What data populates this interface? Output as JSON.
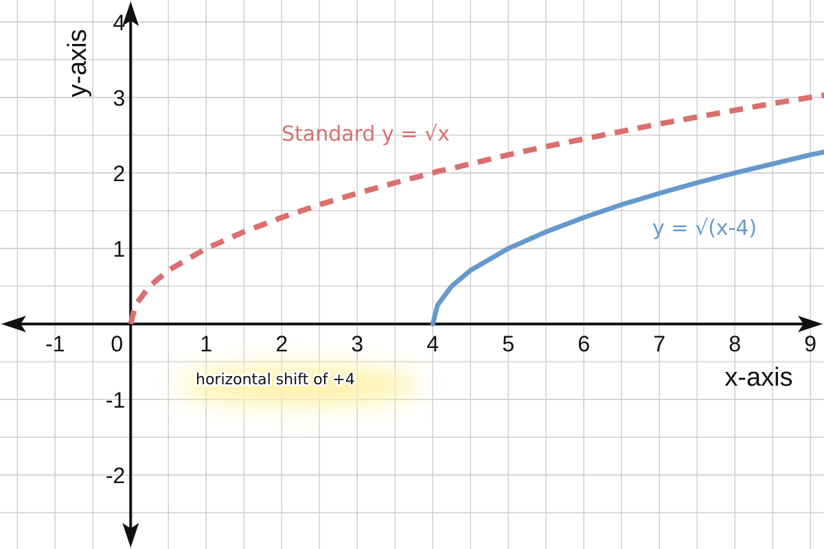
{
  "chart_data": {
    "type": "line",
    "x_label": "x-axis",
    "y_label": "y-axis",
    "annotation": "horizontal shift of +4",
    "x": [
      0,
      0.0625,
      0.25,
      0.5,
      1,
      1.5,
      2,
      2.5,
      3,
      3.5,
      4,
      4.0625,
      4.25,
      4.5,
      5,
      5.5,
      6,
      6.5,
      7,
      7.5,
      8,
      8.5,
      9,
      9.2
    ],
    "series": [
      {
        "name": "Standard y = √x",
        "color": "#d9706e",
        "style": "dashed",
        "values": [
          0,
          0.25,
          0.5,
          0.71,
          1,
          1.22,
          1.41,
          1.58,
          1.73,
          1.87,
          2,
          2.02,
          2.06,
          2.12,
          2.24,
          2.35,
          2.45,
          2.55,
          2.65,
          2.74,
          2.83,
          2.92,
          3,
          3.03
        ]
      },
      {
        "name": "y = √(x-4)",
        "color": "#6699cc",
        "style": "solid",
        "values": [
          null,
          null,
          null,
          null,
          null,
          null,
          null,
          null,
          null,
          null,
          0,
          0.25,
          0.5,
          0.71,
          1,
          1.22,
          1.41,
          1.58,
          1.73,
          1.87,
          2,
          2.12,
          2.24,
          2.28
        ]
      }
    ],
    "xlim": [
      -1.73,
      9.18
    ],
    "ylim": [
      -2.98,
      4.29
    ],
    "xticks": [
      -1,
      0,
      1,
      2,
      3,
      4,
      5,
      6,
      7,
      8,
      9
    ],
    "yticks": [
      -2,
      -1,
      1,
      2,
      3,
      4
    ],
    "grid": true
  }
}
